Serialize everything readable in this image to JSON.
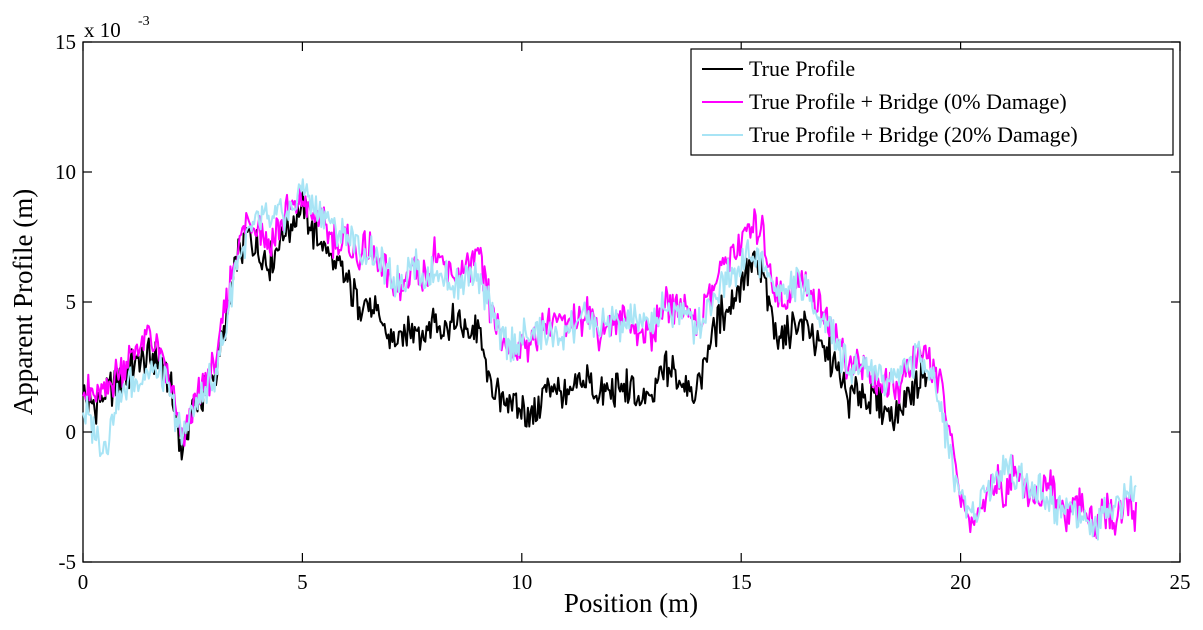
{
  "chart_data": {
    "type": "line",
    "title": "",
    "xlabel": "Position (m)",
    "ylabel": "Apparent Profile (m)",
    "y_exponent": {
      "base": "x 10",
      "power": "-3"
    },
    "xlim": [
      0,
      25
    ],
    "ylim": [
      -5,
      15
    ],
    "xticks": [
      0,
      5,
      10,
      15,
      20,
      25
    ],
    "yticks": [
      -5,
      0,
      5,
      10,
      15
    ],
    "grid": false,
    "legend_position": "top-right",
    "series": [
      {
        "name": "True Profile",
        "color": "#000000",
        "x": [
          0.0,
          0.25,
          0.5,
          0.75,
          1.0,
          1.25,
          1.5,
          1.75,
          2.0,
          2.25,
          2.5,
          2.75,
          3.0,
          3.25,
          3.5,
          3.75,
          4.0,
          4.25,
          4.5,
          4.75,
          5.0,
          5.25,
          5.5,
          5.75,
          6.0,
          6.25,
          6.5,
          6.75,
          7.0,
          7.25,
          7.5,
          7.75,
          8.0,
          8.25,
          8.5,
          8.75,
          9.0,
          9.25,
          9.5,
          9.75,
          10.0,
          10.25,
          10.5,
          10.75,
          11.0,
          11.25,
          11.5,
          11.75,
          12.0,
          12.25,
          12.5,
          12.75,
          13.0,
          13.25,
          13.5,
          13.75,
          14.0,
          14.25,
          14.5,
          14.75,
          15.0,
          15.25,
          15.5,
          15.75,
          16.0,
          16.25,
          16.5,
          16.75,
          17.0,
          17.25,
          17.5,
          17.75,
          18.0,
          18.25,
          18.5,
          18.75,
          19.0,
          19.25
        ],
        "y": [
          1.5,
          1.0,
          1.4,
          1.8,
          2.2,
          2.6,
          3.0,
          2.8,
          1.6,
          -0.6,
          0.8,
          1.4,
          2.2,
          4.0,
          6.6,
          7.6,
          7.0,
          6.4,
          7.6,
          8.0,
          8.6,
          7.6,
          7.2,
          6.4,
          5.8,
          5.0,
          4.8,
          4.2,
          3.6,
          3.4,
          4.2,
          3.6,
          4.4,
          4.0,
          4.2,
          3.8,
          4.0,
          2.0,
          1.2,
          1.4,
          0.8,
          0.6,
          1.4,
          1.8,
          1.2,
          1.6,
          2.2,
          1.2,
          1.6,
          1.8,
          1.6,
          1.0,
          1.4,
          2.4,
          2.2,
          2.0,
          1.6,
          3.2,
          4.4,
          5.0,
          5.8,
          6.4,
          6.0,
          4.0,
          3.6,
          4.2,
          4.0,
          3.4,
          3.0,
          2.0,
          1.2,
          1.6,
          1.2,
          1.0,
          0.6,
          1.2,
          2.0,
          2.6
        ]
      },
      {
        "name": "True Profile + Bridge (0% Damage)",
        "color": "#ff00ff",
        "x": [
          0.0,
          0.25,
          0.5,
          0.75,
          1.0,
          1.25,
          1.5,
          1.75,
          2.0,
          2.25,
          2.5,
          2.75,
          3.0,
          3.25,
          3.5,
          3.75,
          4.0,
          4.25,
          4.5,
          4.75,
          5.0,
          5.25,
          5.5,
          5.75,
          6.0,
          6.25,
          6.5,
          6.75,
          7.0,
          7.25,
          7.5,
          7.75,
          8.0,
          8.25,
          8.5,
          8.75,
          9.0,
          9.25,
          9.5,
          9.75,
          10.0,
          10.25,
          10.5,
          10.75,
          11.0,
          11.25,
          11.5,
          11.75,
          12.0,
          12.25,
          12.5,
          12.75,
          13.0,
          13.25,
          13.5,
          13.75,
          14.0,
          14.25,
          14.5,
          14.75,
          15.0,
          15.25,
          15.5,
          15.75,
          16.0,
          16.25,
          16.5,
          16.75,
          17.0,
          17.25,
          17.5,
          17.75,
          18.0,
          18.25,
          18.5,
          18.75,
          19.0,
          19.25,
          19.5,
          19.75,
          20.0,
          20.25,
          20.5,
          20.75,
          21.0,
          21.25,
          21.5,
          21.75,
          22.0,
          22.25,
          22.5,
          22.75,
          23.0,
          23.25,
          23.5,
          23.75,
          24.0
        ],
        "y": [
          1.8,
          1.2,
          1.6,
          2.2,
          2.8,
          3.2,
          3.8,
          3.0,
          1.8,
          -0.4,
          1.0,
          1.8,
          2.6,
          4.6,
          7.2,
          8.2,
          8.0,
          7.2,
          8.0,
          8.6,
          9.0,
          8.2,
          8.0,
          7.4,
          7.2,
          6.8,
          7.0,
          6.4,
          5.8,
          5.4,
          6.4,
          5.8,
          6.8,
          6.2,
          6.0,
          6.4,
          6.8,
          5.0,
          3.6,
          3.2,
          3.4,
          3.4,
          4.2,
          4.4,
          4.0,
          4.2,
          4.8,
          3.8,
          4.2,
          4.2,
          4.2,
          3.6,
          3.8,
          5.0,
          4.8,
          4.8,
          4.2,
          5.2,
          6.2,
          6.8,
          7.4,
          7.8,
          7.8,
          5.4,
          5.0,
          5.8,
          5.6,
          4.8,
          4.2,
          3.4,
          2.4,
          2.6,
          2.2,
          1.8,
          1.6,
          2.2,
          2.8,
          3.0,
          2.0,
          0.2,
          -2.6,
          -3.4,
          -2.8,
          -1.8,
          -2.4,
          -1.4,
          -2.2,
          -2.6,
          -2.0,
          -3.0,
          -3.2,
          -2.6,
          -3.6,
          -3.0,
          -3.4,
          -2.6,
          -3.4
        ]
      },
      {
        "name": "True Profile + Bridge (20% Damage)",
        "color": "#a8e4f5",
        "x": [
          0.0,
          0.25,
          0.5,
          0.75,
          1.0,
          1.25,
          1.5,
          1.75,
          2.0,
          2.25,
          2.5,
          2.75,
          3.0,
          3.25,
          3.5,
          3.75,
          4.0,
          4.25,
          4.5,
          4.75,
          5.0,
          5.25,
          5.5,
          5.75,
          6.0,
          6.25,
          6.5,
          6.75,
          7.0,
          7.25,
          7.5,
          7.75,
          8.0,
          8.25,
          8.5,
          8.75,
          9.0,
          9.25,
          9.5,
          9.75,
          10.0,
          10.25,
          10.5,
          10.75,
          11.0,
          11.25,
          11.5,
          11.75,
          12.0,
          12.25,
          12.5,
          12.75,
          13.0,
          13.25,
          13.5,
          13.75,
          14.0,
          14.25,
          14.5,
          14.75,
          15.0,
          15.25,
          15.5,
          15.75,
          16.0,
          16.25,
          16.5,
          16.75,
          17.0,
          17.25,
          17.5,
          17.75,
          18.0,
          18.25,
          18.5,
          18.75,
          19.0,
          19.25,
          19.5,
          19.75,
          20.0,
          20.25,
          20.5,
          20.75,
          21.0,
          21.25,
          21.5,
          21.75,
          22.0,
          22.25,
          22.5,
          22.75,
          23.0,
          23.25,
          23.5,
          23.75,
          24.0
        ],
        "y": [
          1.0,
          0.0,
          -0.6,
          1.0,
          1.8,
          2.0,
          2.4,
          2.2,
          1.4,
          -0.2,
          0.8,
          1.6,
          2.2,
          4.0,
          6.6,
          7.4,
          8.2,
          8.0,
          8.4,
          8.6,
          9.6,
          8.6,
          8.4,
          7.6,
          7.6,
          7.0,
          6.8,
          6.6,
          6.0,
          5.8,
          6.6,
          6.0,
          6.4,
          5.8,
          5.6,
          6.0,
          6.2,
          4.8,
          3.6,
          3.4,
          3.6,
          3.8,
          3.8,
          3.6,
          3.8,
          4.2,
          4.4,
          4.0,
          4.2,
          4.0,
          4.4,
          4.0,
          4.4,
          4.6,
          4.8,
          4.4,
          4.0,
          4.8,
          5.6,
          6.2,
          6.6,
          6.8,
          6.4,
          5.6,
          5.4,
          5.8,
          5.2,
          4.8,
          4.2,
          3.2,
          2.2,
          2.6,
          2.4,
          2.0,
          2.2,
          2.6,
          2.8,
          2.6,
          1.4,
          -0.8,
          -2.4,
          -3.2,
          -2.4,
          -1.8,
          -1.4,
          -1.6,
          -1.8,
          -2.2,
          -2.6,
          -3.0,
          -2.6,
          -3.4,
          -4.0,
          -3.2,
          -3.0,
          -2.6,
          -2.2
        ]
      }
    ]
  }
}
